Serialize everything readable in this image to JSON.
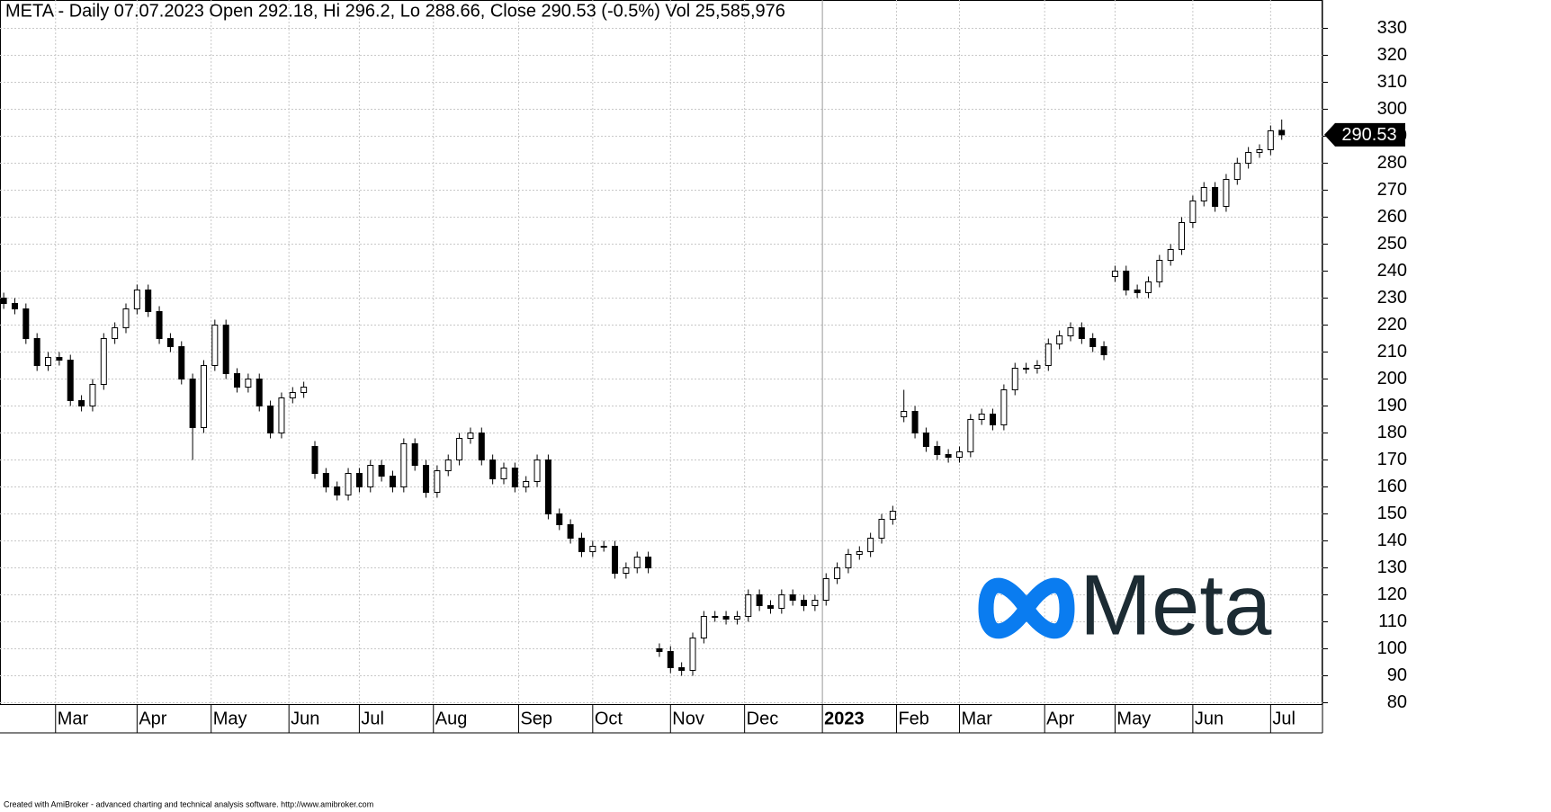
{
  "chart_data": {
    "type": "candlestick",
    "title": "META - Daily 07.07.2023 Open 292.18, Hi 296.2, Lo 288.66, Close 290.53 (-0.5%) Vol 25,585,976",
    "footer": "Created with AmiBroker - advanced charting and technical analysis software. http://www.amibroker.com",
    "logo_text": "Meta",
    "up_color": "#ffffff",
    "down_color": "#000000",
    "grid": true,
    "xlim": [
      0,
      357
    ],
    "xticks": [
      {
        "value": 15,
        "label": "Mar"
      },
      {
        "value": 37,
        "label": "Apr"
      },
      {
        "value": 57,
        "label": "May"
      },
      {
        "value": 78,
        "label": "Jun"
      },
      {
        "value": 97,
        "label": "Jul"
      },
      {
        "value": 117,
        "label": "Aug"
      },
      {
        "value": 140,
        "label": "Sep"
      },
      {
        "value": 160,
        "label": "Oct"
      },
      {
        "value": 181,
        "label": "Nov"
      },
      {
        "value": 201,
        "label": "Dec"
      },
      {
        "value": 222,
        "label": "2023"
      },
      {
        "value": 242,
        "label": "Feb"
      },
      {
        "value": 259,
        "label": "Mar"
      },
      {
        "value": 282,
        "label": "Apr"
      },
      {
        "value": 301,
        "label": "May"
      },
      {
        "value": 322,
        "label": "Jun"
      },
      {
        "value": 343,
        "label": "Jul"
      }
    ],
    "ylim": [
      79.5,
      340.5
    ],
    "yticks": [
      80,
      90,
      100,
      110,
      120,
      130,
      140,
      150,
      160,
      170,
      180,
      190,
      200,
      210,
      220,
      230,
      240,
      250,
      260,
      270,
      280,
      290,
      300,
      310,
      320,
      330
    ],
    "x": [
      1,
      4,
      7,
      10,
      13,
      16,
      19,
      22,
      25,
      28,
      31,
      34,
      37,
      40,
      43,
      46,
      49,
      52,
      55,
      58,
      61,
      64,
      67,
      70,
      73,
      76,
      79,
      82,
      85,
      88,
      91,
      94,
      97,
      100,
      103,
      106,
      109,
      112,
      115,
      118,
      121,
      124,
      127,
      130,
      133,
      136,
      139,
      142,
      145,
      148,
      151,
      154,
      157,
      160,
      163,
      166,
      169,
      172,
      175,
      178,
      181,
      184,
      187,
      190,
      193,
      196,
      199,
      202,
      205,
      208,
      211,
      214,
      217,
      220,
      223,
      226,
      229,
      232,
      235,
      238,
      241,
      244,
      247,
      250,
      253,
      256,
      259,
      262,
      265,
      268,
      271,
      274,
      277,
      280,
      283,
      286,
      289,
      292,
      295,
      298,
      301,
      304,
      307,
      310,
      313,
      316,
      319,
      322,
      325,
      328,
      331,
      334,
      337,
      340,
      343,
      346
    ],
    "open": [
      230,
      228,
      226,
      215,
      205,
      208,
      207,
      192,
      190,
      198,
      215,
      219,
      226,
      233,
      225,
      215,
      212,
      200,
      182,
      205,
      220,
      202,
      197,
      200,
      190,
      180,
      193,
      195,
      175,
      165,
      160,
      157,
      165,
      160,
      168,
      164,
      160,
      176,
      168,
      158,
      166,
      170,
      178,
      180,
      170,
      163,
      167,
      160,
      162,
      170,
      150,
      146,
      141,
      136,
      138,
      138,
      128,
      130,
      134,
      100,
      99,
      93,
      92,
      104,
      112,
      112,
      111,
      112,
      120,
      116,
      115,
      120,
      118,
      116,
      118,
      126,
      130,
      135,
      136,
      141,
      148,
      186,
      188,
      180,
      175,
      172,
      171,
      173,
      185,
      187,
      183,
      196,
      204,
      204,
      205,
      213,
      216,
      219,
      215,
      212,
      238,
      240,
      233,
      232,
      236,
      244,
      248,
      258,
      266,
      271,
      264,
      274,
      280,
      284,
      285,
      292.18
    ],
    "high": [
      232,
      230,
      228,
      217,
      210,
      210,
      209,
      194,
      200,
      217,
      221,
      228,
      235,
      235,
      227,
      217,
      214,
      202,
      207,
      222,
      222,
      204,
      202,
      202,
      192,
      195,
      197,
      199,
      177,
      167,
      162,
      167,
      167,
      170,
      170,
      166,
      178,
      178,
      170,
      168,
      172,
      180,
      182,
      182,
      172,
      169,
      169,
      164,
      172,
      172,
      152,
      148,
      143,
      140,
      140,
      140,
      132,
      136,
      136,
      102,
      101,
      95,
      106,
      114,
      114,
      114,
      114,
      122,
      122,
      118,
      122,
      122,
      120,
      120,
      128,
      132,
      137,
      138,
      143,
      150,
      153,
      196,
      190,
      182,
      177,
      174,
      175,
      187,
      189,
      189,
      198,
      206,
      206,
      207,
      215,
      218,
      221,
      221,
      217,
      214,
      242,
      242,
      235,
      238,
      246,
      250,
      260,
      268,
      273,
      273,
      276,
      282,
      286,
      287,
      294,
      296.2
    ],
    "low": [
      226,
      224,
      213,
      203,
      203,
      205,
      190,
      188,
      188,
      196,
      213,
      217,
      224,
      223,
      213,
      210,
      198,
      170,
      180,
      203,
      200,
      195,
      195,
      188,
      178,
      178,
      191,
      193,
      163,
      158,
      155,
      155,
      158,
      158,
      162,
      158,
      158,
      166,
      156,
      156,
      164,
      168,
      176,
      168,
      161,
      161,
      158,
      158,
      160,
      148,
      144,
      139,
      134,
      134,
      136,
      126,
      126,
      128,
      128,
      97,
      91,
      90,
      90,
      102,
      110,
      109,
      109,
      110,
      114,
      113,
      113,
      116,
      114,
      114,
      116,
      124,
      128,
      133,
      134,
      139,
      146,
      184,
      178,
      173,
      170,
      169,
      169,
      171,
      183,
      181,
      181,
      194,
      202,
      202,
      203,
      211,
      214,
      213,
      210,
      207,
      236,
      231,
      230,
      230,
      234,
      242,
      246,
      256,
      264,
      262,
      262,
      272,
      278,
      282,
      283,
      288.66
    ],
    "close": [
      228,
      226,
      215,
      205,
      208,
      207,
      192,
      190,
      198,
      215,
      219,
      226,
      233,
      225,
      215,
      212,
      200,
      182,
      205,
      220,
      202,
      197,
      200,
      190,
      180,
      193,
      195,
      197,
      165,
      160,
      157,
      165,
      160,
      168,
      164,
      160,
      176,
      168,
      158,
      166,
      170,
      178,
      180,
      170,
      163,
      167,
      160,
      162,
      170,
      150,
      146,
      141,
      136,
      138,
      138,
      128,
      130,
      134,
      130,
      99,
      93,
      92,
      104,
      112,
      112,
      111,
      112,
      120,
      116,
      115,
      120,
      118,
      116,
      118,
      126,
      130,
      135,
      136,
      141,
      148,
      151,
      188,
      180,
      175,
      172,
      171,
      173,
      185,
      187,
      183,
      196,
      204,
      204,
      205,
      213,
      216,
      219,
      215,
      212,
      209,
      240,
      233,
      232,
      236,
      244,
      248,
      258,
      266,
      271,
      264,
      274,
      280,
      284,
      285,
      292,
      290.53
    ]
  }
}
